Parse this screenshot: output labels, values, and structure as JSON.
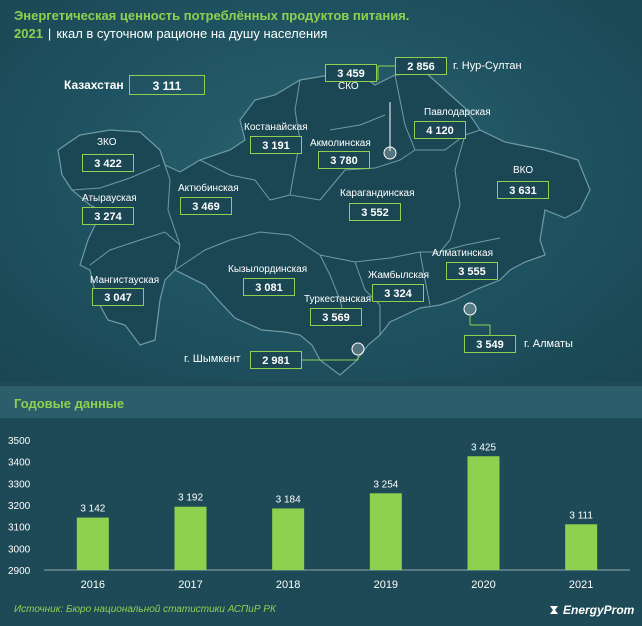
{
  "title_line1": "Энергетическая ценность потреблённых продуктов питания.",
  "title_year": "2021",
  "title_line2": "ккал в суточном рационе на душу населения",
  "kazakhstan": {
    "label": "Казахстан",
    "value": "3 111"
  },
  "regions": [
    {
      "name": "ЗКО",
      "value": "3 422"
    },
    {
      "name": "Атырауская",
      "value": "3 274"
    },
    {
      "name": "Мангистауская",
      "value": "3 047"
    },
    {
      "name": "Актюбинская",
      "value": "3 469"
    },
    {
      "name": "Костанайская",
      "value": "3 191"
    },
    {
      "name": "СКО",
      "value": "3 459"
    },
    {
      "name": "Акмолинская",
      "value": "3 780"
    },
    {
      "name": "Павлодарская",
      "value": "4 120"
    },
    {
      "name": "ВКО",
      "value": "3 631"
    },
    {
      "name": "Карагандинская",
      "value": "3 552"
    },
    {
      "name": "Кызылординская",
      "value": "3 081"
    },
    {
      "name": "Туркестанская",
      "value": "3 569"
    },
    {
      "name": "Жамбылская",
      "value": "3 324"
    },
    {
      "name": "Алматинская",
      "value": "3 555"
    }
  ],
  "cities": [
    {
      "name": "г. Нур-Султан",
      "value": "2 856"
    },
    {
      "name": "г. Шымкент",
      "value": "2 981"
    },
    {
      "name": "г. Алматы",
      "value": "3 549"
    }
  ],
  "section_title": "Годовые данные",
  "chart_data": {
    "type": "bar",
    "categories": [
      "2016",
      "2017",
      "2018",
      "2019",
      "2020",
      "2021"
    ],
    "values": [
      3142,
      3192,
      3184,
      3254,
      3425,
      3111
    ],
    "value_labels": [
      "3 142",
      "3 192",
      "3 184",
      "3 254",
      "3 425",
      "3 111"
    ],
    "ylim": [
      2900,
      3500
    ],
    "yticks": [
      2900,
      3000,
      3100,
      3200,
      3300,
      3400,
      3500
    ],
    "title": "",
    "xlabel": "",
    "ylabel": "",
    "bar_color": "#8fd14f",
    "grid": false
  },
  "source": "Источник: Бюро национальной статистики АСПиР РК",
  "logo": "EnergyProm"
}
